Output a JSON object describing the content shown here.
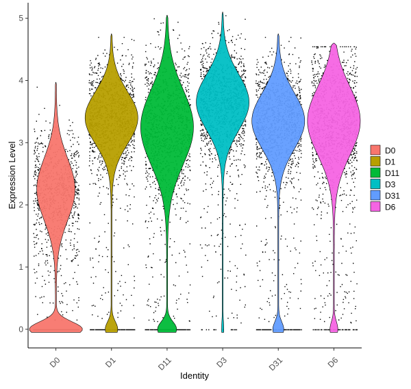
{
  "chart_data": {
    "type": "violin",
    "xlabel": "Identity",
    "ylabel": "Expression Level",
    "ylim": [
      -0.3,
      5.25
    ],
    "yticks": [
      0,
      1,
      2,
      3,
      4,
      5
    ],
    "grid": false,
    "points_overlay": true,
    "legend_position": "right",
    "categories": [
      "D0",
      "D1",
      "D11",
      "D3",
      "D31",
      "D6"
    ],
    "series": [
      {
        "name": "D0",
        "color": "#F8766D",
        "max": 3.97,
        "zero_fraction": 0.35,
        "mode": 2.25,
        "spread": 0.5,
        "lower": 0.15,
        "upper": 3.9
      },
      {
        "name": "D1",
        "color": "#B79F00",
        "max": 4.75,
        "zero_fraction": 0.08,
        "mode": 3.4,
        "spread": 0.42,
        "lower": 0.15,
        "upper": 4.7
      },
      {
        "name": "D11",
        "color": "#00BA38",
        "max": 5.05,
        "zero_fraction": 0.12,
        "mode": 3.25,
        "spread": 0.6,
        "lower": 0.1,
        "upper": 5.0
      },
      {
        "name": "D3",
        "color": "#00BFC4",
        "max": 5.1,
        "zero_fraction": 0.01,
        "mode": 3.65,
        "spread": 0.45,
        "lower": 0.1,
        "upper": 5.05
      },
      {
        "name": "D31",
        "color": "#619CFF",
        "max": 4.75,
        "zero_fraction": 0.07,
        "mode": 3.35,
        "spread": 0.45,
        "lower": 0.1,
        "upper": 4.7
      },
      {
        "name": "D6",
        "color": "#F564E3",
        "max": 4.6,
        "zero_fraction": 0.05,
        "mode": 3.35,
        "spread": 0.55,
        "lower": 0.1,
        "upper": 4.55
      }
    ]
  }
}
